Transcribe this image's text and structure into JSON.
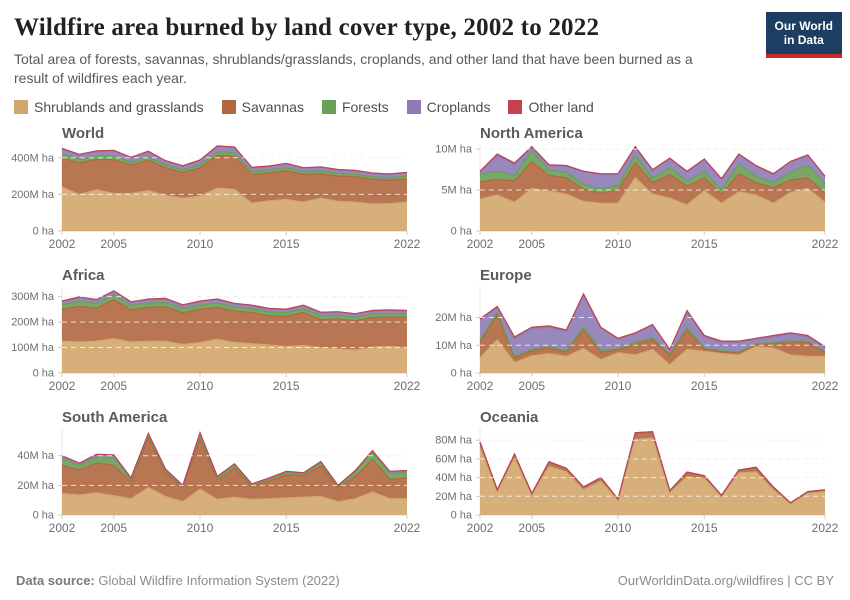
{
  "header": {
    "title": "Wildfire area burned by land cover type, 2002 to 2022",
    "subtitle": "Total area of forests, savannas, shrublands/grasslands, croplands, and other land that have been burned as a result of wildfires each year.",
    "logo_line1": "Our World",
    "logo_line2": "in Data"
  },
  "legend": {
    "items": [
      {
        "label": "Shrublands and grasslands",
        "color": "#D2A66C"
      },
      {
        "label": "Savannas",
        "color": "#B0683F"
      },
      {
        "label": "Forests",
        "color": "#699F57"
      },
      {
        "label": "Croplands",
        "color": "#8E7BB5"
      },
      {
        "label": "Other land",
        "color": "#C2434F"
      }
    ]
  },
  "chart_data": {
    "type": "stacked-area",
    "unit": "ha",
    "x": [
      2002,
      2003,
      2004,
      2005,
      2006,
      2007,
      2008,
      2009,
      2010,
      2011,
      2012,
      2013,
      2014,
      2015,
      2016,
      2017,
      2018,
      2019,
      2020,
      2021,
      2022
    ],
    "x_ticks": [
      2002,
      2005,
      2010,
      2015,
      2022
    ],
    "facets": [
      {
        "title": "World",
        "unit_scale": "M ha",
        "ymax": 470,
        "y_ticks": [
          {
            "value": 0,
            "label": "0 ha"
          },
          {
            "value": 200,
            "label": "200M ha"
          },
          {
            "value": 400,
            "label": "400M ha"
          }
        ],
        "series": [
          {
            "name": "Shrublands and grasslands",
            "values": [
              240,
              200,
              225,
              205,
              205,
              220,
              195,
              180,
              190,
              235,
              228,
              152,
              165,
              172,
              158,
              180,
              162,
              158,
              148,
              150,
              158
            ]
          },
          {
            "name": "Savannas",
            "values": [
              160,
              172,
              165,
              185,
              155,
              168,
              150,
              140,
              155,
              178,
              180,
              158,
              152,
              158,
              150,
              133,
              138,
              138,
              135,
              128,
              128
            ]
          },
          {
            "name": "Forests",
            "values": [
              20,
              18,
              18,
              20,
              16,
              18,
              15,
              14,
              16,
              20,
              20,
              15,
              15,
              16,
              15,
              15,
              14,
              14,
              13,
              13,
              14
            ]
          },
          {
            "name": "Croplands",
            "values": [
              28,
              25,
              26,
              27,
              24,
              26,
              22,
              20,
              24,
              28,
              27,
              20,
              20,
              21,
              20,
              20,
              19,
              19,
              18,
              18,
              18
            ]
          },
          {
            "name": "Other land",
            "values": [
              4,
              4,
              4,
              4,
              3,
              4,
              3,
              3,
              3,
              4,
              4,
              3,
              3,
              3,
              3,
              3,
              3,
              3,
              3,
              3,
              3
            ]
          }
        ]
      },
      {
        "title": "North America",
        "unit_scale": "M ha",
        "ymax": 10.5,
        "y_ticks": [
          {
            "value": 0,
            "label": "0 ha"
          },
          {
            "value": 5,
            "label": "5M ha"
          },
          {
            "value": 10,
            "label": "10M ha"
          }
        ],
        "series": [
          {
            "name": "Shrublands and grasslands",
            "values": [
              3.9,
              4.4,
              3.5,
              5.2,
              4.9,
              4.5,
              3.6,
              3.4,
              3.4,
              6.5,
              4.5,
              4.0,
              3.2,
              4.9,
              3.4,
              4.8,
              4.4,
              3.4,
              4.7,
              5.2,
              3.5
            ]
          },
          {
            "name": "Savannas",
            "values": [
              2.1,
              1.9,
              2.6,
              3.3,
              1.9,
              2.0,
              1.5,
              1.2,
              1.6,
              1.8,
              1.4,
              2.9,
              2.3,
              1.6,
              1.1,
              2.2,
              1.5,
              1.9,
              1.5,
              1.3,
              1.1
            ]
          },
          {
            "name": "Forests",
            "values": [
              0.9,
              1.0,
              0.7,
              1.3,
              0.6,
              0.7,
              0.6,
              0.5,
              0.6,
              0.9,
              0.6,
              0.8,
              0.6,
              0.8,
              0.5,
              1.2,
              0.8,
              0.6,
              1.0,
              1.5,
              1.2
            ]
          },
          {
            "name": "Croplands",
            "values": [
              0.3,
              1.9,
              1.3,
              0.4,
              0.6,
              0.7,
              1.5,
              1.8,
              1.3,
              1.0,
              0.9,
              1.1,
              1.1,
              1.4,
              1.3,
              1.1,
              1.2,
              1.0,
              1.2,
              1.2,
              0.8
            ]
          },
          {
            "name": "Other land",
            "values": [
              0.1,
              0.2,
              0.2,
              0.1,
              0.1,
              0.1,
              0.1,
              0.1,
              0.1,
              0.1,
              0.1,
              0.1,
              0.1,
              0.1,
              0.1,
              0.1,
              0.1,
              0.1,
              0.1,
              0.1,
              0.1
            ]
          }
        ]
      },
      {
        "title": "Africa",
        "unit_scale": "M ha",
        "ymax": 338,
        "y_ticks": [
          {
            "value": 0,
            "label": "0 ha"
          },
          {
            "value": 100,
            "label": "100M ha"
          },
          {
            "value": 200,
            "label": "200M ha"
          },
          {
            "value": 300,
            "label": "300M ha"
          }
        ],
        "series": [
          {
            "name": "Shrublands and grasslands",
            "values": [
              125,
              122,
              125,
              135,
              122,
              125,
              125,
              112,
              120,
              133,
              120,
              115,
              110,
              105,
              108,
              100,
              95,
              90,
              102,
              105,
              100
            ]
          },
          {
            "name": "Savannas",
            "values": [
              125,
              140,
              130,
              153,
              126,
              133,
              135,
              125,
              130,
              125,
              123,
              123,
              115,
              117,
              130,
              110,
              118,
              115,
              116,
              115,
              118
            ]
          },
          {
            "name": "Forests",
            "values": [
              18,
              20,
              18,
              18,
              17,
              18,
              17,
              16,
              17,
              17,
              16,
              15,
              15,
              15,
              15,
              15,
              14,
              14,
              14,
              14,
              14
            ]
          },
          {
            "name": "Croplands",
            "values": [
              12,
              14,
              13,
              14,
              12,
              12,
              13,
              12,
              13,
              13,
              12,
              11,
              11,
              11,
              11,
              11,
              11,
              11,
              11,
              11,
              11
            ]
          },
          {
            "name": "Other land",
            "values": [
              3,
              3,
              3,
              3,
              3,
              3,
              3,
              3,
              3,
              3,
              3,
              3,
              3,
              3,
              3,
              3,
              3,
              3,
              3,
              3,
              3
            ]
          }
        ]
      },
      {
        "title": "Europe",
        "unit_scale": "M ha",
        "ymax": 31,
        "y_ticks": [
          {
            "value": 0,
            "label": "0 ha"
          },
          {
            "value": 10,
            "label": "10M ha"
          },
          {
            "value": 20,
            "label": "20M ha"
          }
        ],
        "series": [
          {
            "name": "Shrublands and grasslands",
            "values": [
              5.5,
              12,
              3.8,
              6.2,
              7,
              6,
              8.8,
              4.8,
              7.3,
              6.5,
              8.5,
              3,
              8.5,
              7.8,
              7,
              6.5,
              9.5,
              9,
              6.5,
              6,
              6
            ]
          },
          {
            "name": "Savannas",
            "values": [
              5.5,
              9,
              1.7,
              1.8,
              2,
              1.5,
              6.7,
              2.7,
              1,
              4,
              3.5,
              3.5,
              7,
              0.7,
              0.7,
              0.7,
              0.7,
              1.5,
              4.5,
              5,
              1.2
            ]
          },
          {
            "name": "Forests",
            "values": [
              0.8,
              1,
              0.5,
              0.5,
              0.5,
              0.5,
              1,
              0.6,
              0.5,
              0.7,
              0.7,
              0.4,
              1,
              0.5,
              0.4,
              0.4,
              0.4,
              0.5,
              0.6,
              0.5,
              0.5
            ]
          },
          {
            "name": "Croplands",
            "values": [
              7.2,
              1.5,
              6.5,
              7.5,
              7,
              7,
              11.5,
              8,
              3.5,
              3,
              4.5,
              1.5,
              5.5,
              4,
              3,
              3.5,
              1.5,
              2,
              2.5,
              1.5,
              1.5
            ]
          },
          {
            "name": "Other land",
            "values": [
              0.5,
              0.5,
              0.5,
              0.5,
              0.5,
              0.5,
              0.5,
              0.4,
              0.2,
              0.3,
              0.3,
              0.1,
              0.5,
              0.5,
              0.4,
              0.4,
              0.4,
              0.5,
              0.4,
              0.5,
              0.3
            ]
          }
        ]
      },
      {
        "title": "South America",
        "unit_scale": "M ha",
        "ymax": 58,
        "y_ticks": [
          {
            "value": 0,
            "label": "0 ha"
          },
          {
            "value": 20,
            "label": "20M ha"
          },
          {
            "value": 40,
            "label": "40M ha"
          }
        ],
        "series": [
          {
            "name": "Shrublands and grasslands",
            "values": [
              14.5,
              13.5,
              15,
              13,
              11,
              18.5,
              12.5,
              9,
              17.5,
              10.5,
              12,
              10.5,
              11,
              11.5,
              12,
              12.5,
              9,
              11,
              15.5,
              11,
              11
            ]
          },
          {
            "name": "Savannas",
            "values": [
              19,
              17,
              20,
              20.5,
              11.5,
              33,
              16,
              9.5,
              33.5,
              13,
              19.5,
              8.5,
              12,
              15.5,
              14.5,
              20.5,
              9,
              15,
              22,
              13,
              14
            ]
          },
          {
            "name": "Forests",
            "values": [
              4.5,
              2.8,
              4,
              5,
              1.5,
              2,
              1.5,
              0.8,
              3,
              1.5,
              1.8,
              1,
              1.2,
              1.5,
              1.2,
              2,
              1,
              3,
              4.5,
              4,
              3.5
            ]
          },
          {
            "name": "Croplands",
            "values": [
              1.5,
              1.3,
              1.5,
              1.5,
              0.8,
              1.2,
              0.8,
              0.5,
              1.2,
              0.8,
              1,
              0.8,
              0.6,
              0.8,
              0.6,
              0.8,
              0.8,
              0.8,
              1.2,
              1.2,
              1.2
            ]
          },
          {
            "name": "Other land",
            "values": [
              0.5,
              0.4,
              0.5,
              0.5,
              0.2,
              0.3,
              0.2,
              0.2,
              0.3,
              0.2,
              0.2,
              0.2,
              0.2,
              0.2,
              0.2,
              0.2,
              0.2,
              0.2,
              0.3,
              0.3,
              0.3
            ]
          }
        ]
      },
      {
        "title": "Oceania",
        "unit_scale": "M ha",
        "ymax": 92,
        "y_ticks": [
          {
            "value": 0,
            "label": "0 ha"
          },
          {
            "value": 20,
            "label": "20M ha"
          },
          {
            "value": 40,
            "label": "40M ha"
          },
          {
            "value": 60,
            "label": "60M ha"
          },
          {
            "value": 80,
            "label": "80M ha"
          }
        ],
        "series": [
          {
            "name": "Shrublands and grasslands",
            "values": [
              72,
              25,
              61,
              21,
              52,
              46,
              27,
              36,
              15.5,
              81,
              82,
              24,
              41,
              39,
              19.5,
              45,
              46,
              27,
              12,
              23,
              25
            ]
          },
          {
            "name": "Savannas",
            "values": [
              5.5,
              1.8,
              3.8,
              1.8,
              4.5,
              3.8,
              2.8,
              3.8,
              1.3,
              6.5,
              6.5,
              1.8,
              4.5,
              2.8,
              1.3,
              2.8,
              4.5,
              2.5,
              0.7,
              1.8,
              1.8
            ]
          },
          {
            "name": "Forests",
            "values": [
              0.4,
              0.1,
              0.2,
              0.1,
              0.4,
              0.2,
              0.1,
              0.2,
              0.1,
              0.4,
              0.4,
              0.1,
              0.4,
              0.2,
              0.1,
              0.2,
              0.4,
              0.4,
              0.25,
              0.15,
              0.15
            ]
          },
          {
            "name": "Croplands",
            "values": [
              0.1,
              0.05,
              0.1,
              0.05,
              0.1,
              0.05,
              0.05,
              0.05,
              0.05,
              0.1,
              0.1,
              0.05,
              0.1,
              0.05,
              0.05,
              0.05,
              0.1,
              0.05,
              0.03,
              0.04,
              0.04
            ]
          },
          {
            "name": "Other land",
            "values": [
              0.05,
              0.02,
              0.05,
              0.02,
              0.05,
              0.02,
              0.02,
              0.02,
              0.02,
              0.05,
              0.05,
              0.02,
              0.05,
              0.02,
              0.02,
              0.02,
              0.05,
              0.02,
              0.02,
              0.02,
              0.02
            ]
          }
        ]
      }
    ]
  },
  "footer": {
    "source_label": "Data source:",
    "source": "Global Wildfire Information System (2022)",
    "credit": "OurWorldinData.org/wildfires | CC BY"
  }
}
